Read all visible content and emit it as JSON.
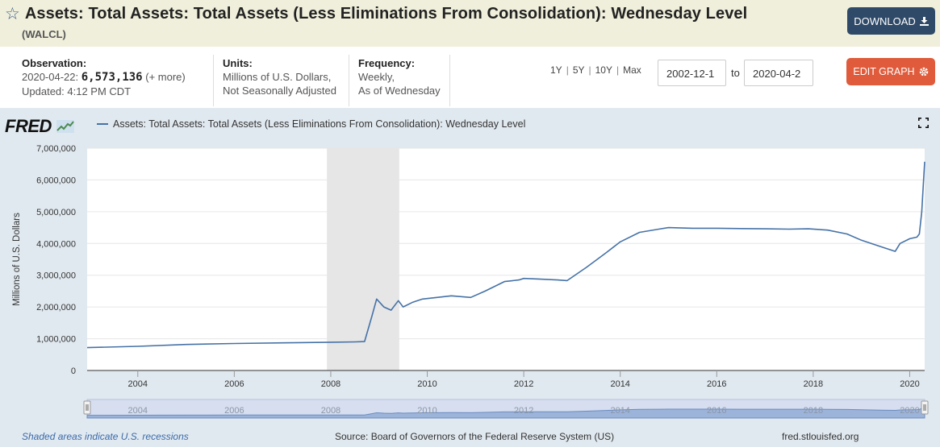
{
  "header": {
    "star_icon": "☆",
    "title": "Assets: Total Assets: Total Assets (Less Eliminations From Consolidation): Wednesday Level",
    "series_id": "(WALCL)",
    "download_label": "DOWNLOAD",
    "download_icon": "download-icon"
  },
  "meta": {
    "observation_label": "Observation:",
    "obs_date": "2020-04-22:",
    "obs_value": "6,573,136",
    "obs_more": "(+ more)",
    "updated": "Updated: 4:12 PM CDT",
    "units_label": "Units:",
    "units_line1": "Millions of U.S. Dollars,",
    "units_line2": "Not Seasonally Adjusted",
    "frequency_label": "Frequency:",
    "frequency_line1": "Weekly,",
    "frequency_line2": "As of Wednesday",
    "ranges": [
      "1Y",
      "5Y",
      "10Y",
      "Max"
    ],
    "range_sep": "|",
    "start_date": "2002-12-1",
    "to_label": "to",
    "end_date": "2020-04-2",
    "edit_label": "EDIT GRAPH",
    "edit_icon": "gear-icon"
  },
  "graph": {
    "logo": "FRED",
    "legend": "Assets: Total Assets: Total Assets (Less Eliminations From Consolidation): Wednesday Level",
    "fullscreen_icon": "expand-icon",
    "recession_note": "Shaded areas indicate U.S. recessions",
    "source": "Source: Board of Governors of the Federal Reserve System (US)",
    "site": "fred.stlouisfed.org",
    "colors": {
      "line": "#4572a7",
      "recession": "#e6e6e6",
      "background": "#e1e9f0"
    }
  },
  "chart_data": {
    "type": "line",
    "title": "Assets: Total Assets: Total Assets (Less Eliminations From Consolidation): Wednesday Level",
    "xlabel": "",
    "ylabel": "Millions of U.S. Dollars",
    "xlim": [
      2002.95,
      2020.31
    ],
    "ylim": [
      0,
      7000000
    ],
    "yticks": [
      0,
      1000000,
      2000000,
      3000000,
      4000000,
      5000000,
      6000000,
      7000000
    ],
    "ytick_labels": [
      "0",
      "1,000,000",
      "2,000,000",
      "3,000,000",
      "4,000,000",
      "5,000,000",
      "6,000,000",
      "7,000,000"
    ],
    "xticks": [
      2004,
      2006,
      2008,
      2010,
      2012,
      2014,
      2016,
      2018,
      2020
    ],
    "xtick_labels": [
      "2004",
      "2006",
      "2008",
      "2010",
      "2012",
      "2014",
      "2016",
      "2018",
      "2020"
    ],
    "recessions": [
      [
        2007.92,
        2009.42
      ]
    ],
    "series": [
      {
        "name": "WALCL",
        "x": [
          2002.95,
          2004,
          2005,
          2006,
          2007,
          2008,
          2008.5,
          2008.7,
          2008.85,
          2008.95,
          2009.1,
          2009.25,
          2009.4,
          2009.5,
          2009.7,
          2009.9,
          2010.2,
          2010.5,
          2010.9,
          2011.2,
          2011.6,
          2011.9,
          2012.0,
          2012.3,
          2012.7,
          2012.9,
          2013.3,
          2013.7,
          2014.0,
          2014.4,
          2014.8,
          2015.0,
          2015.5,
          2016.0,
          2016.5,
          2017.0,
          2017.5,
          2017.9,
          2018.3,
          2018.7,
          2019.0,
          2019.4,
          2019.7,
          2019.8,
          2020.0,
          2020.15,
          2020.2,
          2020.25,
          2020.28,
          2020.31
        ],
        "values": [
          720000,
          760000,
          820000,
          850000,
          870000,
          890000,
          900000,
          910000,
          1700000,
          2250000,
          2000000,
          1900000,
          2200000,
          2000000,
          2150000,
          2250000,
          2300000,
          2350000,
          2300000,
          2500000,
          2800000,
          2850000,
          2900000,
          2880000,
          2850000,
          2830000,
          3250000,
          3700000,
          4050000,
          4350000,
          4450000,
          4500000,
          4480000,
          4480000,
          4470000,
          4460000,
          4450000,
          4460000,
          4420000,
          4300000,
          4100000,
          3900000,
          3750000,
          4000000,
          4150000,
          4200000,
          4300000,
          5000000,
          5800000,
          6573136
        ]
      }
    ]
  },
  "navigator": {
    "labels": [
      "2004",
      "2006",
      "2008",
      "2010",
      "2012",
      "2014",
      "2016",
      "2018",
      "2020"
    ]
  }
}
